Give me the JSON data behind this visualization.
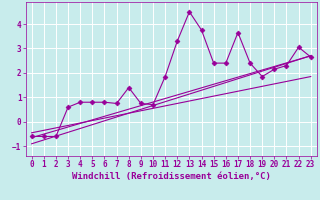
{
  "title": "",
  "xlabel": "Windchill (Refroidissement éolien,°C)",
  "ylabel": "",
  "background_color": "#c8ecec",
  "grid_color": "#ffffff",
  "line_color": "#990099",
  "xlim": [
    -0.5,
    23.5
  ],
  "ylim": [
    -1.4,
    4.9
  ],
  "xticks": [
    0,
    1,
    2,
    3,
    4,
    5,
    6,
    7,
    8,
    9,
    10,
    11,
    12,
    13,
    14,
    15,
    16,
    17,
    18,
    19,
    20,
    21,
    22,
    23
  ],
  "yticks": [
    -1,
    0,
    1,
    2,
    3,
    4
  ],
  "scatter_x": [
    0,
    1,
    2,
    3,
    4,
    5,
    6,
    7,
    8,
    9,
    10,
    11,
    12,
    13,
    14,
    15,
    16,
    17,
    18,
    19,
    20,
    21,
    22,
    23
  ],
  "scatter_y": [
    -0.6,
    -0.6,
    -0.6,
    0.6,
    0.8,
    0.8,
    0.8,
    0.75,
    1.4,
    0.75,
    0.7,
    1.85,
    3.3,
    4.5,
    3.75,
    2.4,
    2.4,
    3.65,
    2.4,
    1.85,
    2.15,
    2.3,
    3.05,
    2.65
  ],
  "line1_x": [
    0,
    23
  ],
  "line1_y": [
    -0.65,
    2.7
  ],
  "line2_x": [
    0,
    23
  ],
  "line2_y": [
    -0.9,
    2.7
  ],
  "line3_x": [
    0,
    23
  ],
  "line3_y": [
    -0.45,
    1.85
  ],
  "marker": "D",
  "markersize": 2.5,
  "linewidth": 0.8,
  "tick_fontsize": 5.5,
  "label_fontsize": 6.5
}
